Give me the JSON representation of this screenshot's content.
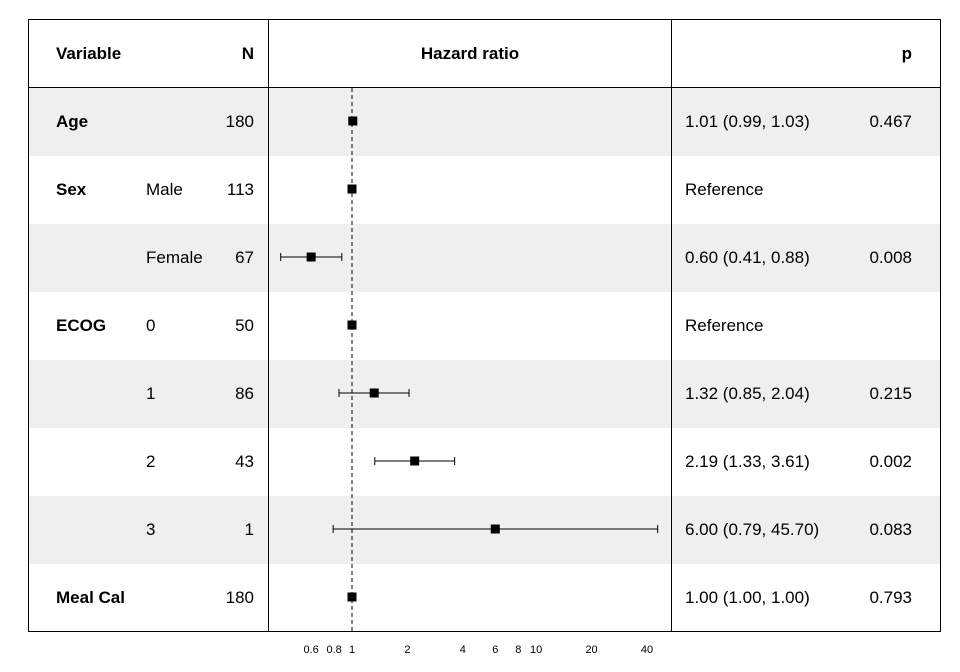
{
  "header": {
    "variable": "Variable",
    "n": "N",
    "hazard_ratio": "Hazard ratio",
    "p": "p"
  },
  "rows": [
    {
      "variable": "Age",
      "level": "",
      "n": "180",
      "estimate": "1.01 (0.99, 1.03)",
      "p": "0.467"
    },
    {
      "variable": "Sex",
      "level": "Male",
      "n": "113",
      "estimate": "Reference",
      "p": ""
    },
    {
      "variable": "",
      "level": "Female",
      "n": "67",
      "estimate": "0.60 (0.41, 0.88)",
      "p": "0.008"
    },
    {
      "variable": "ECOG",
      "level": "0",
      "n": "50",
      "estimate": "Reference",
      "p": ""
    },
    {
      "variable": "",
      "level": "1",
      "n": "86",
      "estimate": "1.32 (0.85, 2.04)",
      "p": "0.215"
    },
    {
      "variable": "",
      "level": "2",
      "n": "43",
      "estimate": "2.19 (1.33, 3.61)",
      "p": "0.002"
    },
    {
      "variable": "",
      "level": "3",
      "n": "1",
      "estimate": "6.00 (0.79, 45.70)",
      "p": "0.083"
    },
    {
      "variable": "Meal Cal",
      "level": "",
      "n": "180",
      "estimate": "1.00 (1.00, 1.00)",
      "p": "0.793"
    }
  ],
  "chart_data": {
    "type": "scatter",
    "subtype": "forest",
    "x_scale": "log",
    "reference_line": 1,
    "x_ticks": [
      0.6,
      0.8,
      1,
      2,
      4,
      6,
      8,
      10,
      20,
      40
    ],
    "x_tick_labels": [
      "0.6",
      "0.8",
      "1",
      "2",
      "4",
      "6",
      "8",
      "10",
      "20",
      "40"
    ],
    "points": [
      {
        "hr": 1.01,
        "lower": 0.99,
        "upper": 1.03
      },
      {
        "hr": 1.0,
        "lower": null,
        "upper": null
      },
      {
        "hr": 0.6,
        "lower": 0.41,
        "upper": 0.88
      },
      {
        "hr": 1.0,
        "lower": null,
        "upper": null
      },
      {
        "hr": 1.32,
        "lower": 0.85,
        "upper": 2.04
      },
      {
        "hr": 2.19,
        "lower": 1.33,
        "upper": 3.61
      },
      {
        "hr": 6.0,
        "lower": 0.79,
        "upper": 45.7
      },
      {
        "hr": 1.0,
        "lower": 1.0,
        "upper": 1.0
      }
    ],
    "colors": {
      "marker": "#000000",
      "row_shade": "#efefef"
    }
  }
}
